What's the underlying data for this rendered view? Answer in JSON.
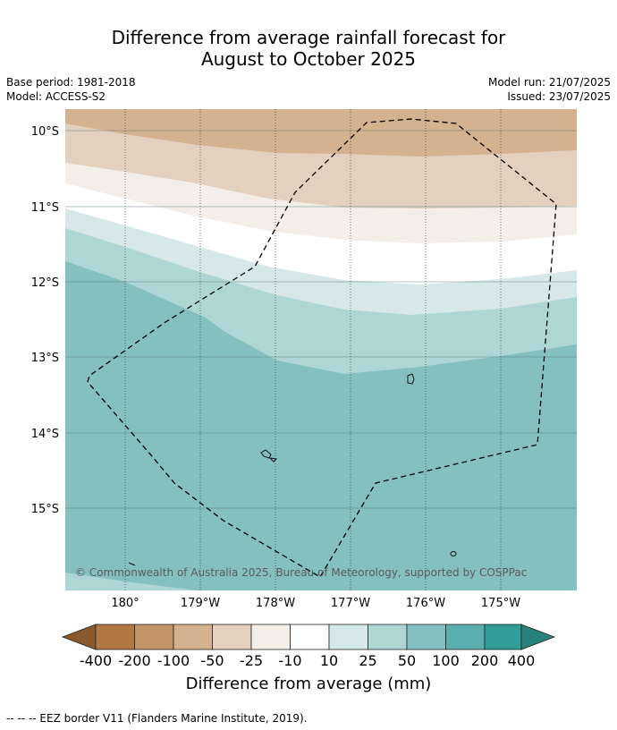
{
  "title_line1": "Difference from average rainfall forecast for",
  "title_line2": "August to October 2025",
  "base_period": "Base period: 1981-2018",
  "model": "Model: ACCESS-S2",
  "model_run": "Model run: 21/07/2025",
  "issued": "Issued: 23/07/2025",
  "lat_labels": [
    "10°S",
    "11°S",
    "12°S",
    "13°S",
    "14°S",
    "15°S"
  ],
  "lon_labels": [
    "180°",
    "179°W",
    "178°W",
    "177°W",
    "176°W",
    "175°W"
  ],
  "copyright": "© Commonwealth of Australia 2025, Bureau of Meteorology, supported by COSPPac",
  "colorbar": {
    "title": "Difference from average (mm)",
    "tick_labels": [
      "-400",
      "-200",
      "-100",
      "-50",
      "-25",
      "-10",
      "10",
      "25",
      "50",
      "100",
      "200",
      "400"
    ],
    "colors": [
      "#8b5a2b",
      "#b07840",
      "#c49468",
      "#d4b18f",
      "#e3d0bf",
      "#f3eee8",
      "#ffffff",
      "#d6e9e8",
      "#aed6d5",
      "#85c0c0",
      "#5aaeae",
      "#319e9a",
      "#2a807c"
    ]
  },
  "footnote": "--  --  -- EEZ border V11 (Flanders Marine Institute, 2019)."
}
